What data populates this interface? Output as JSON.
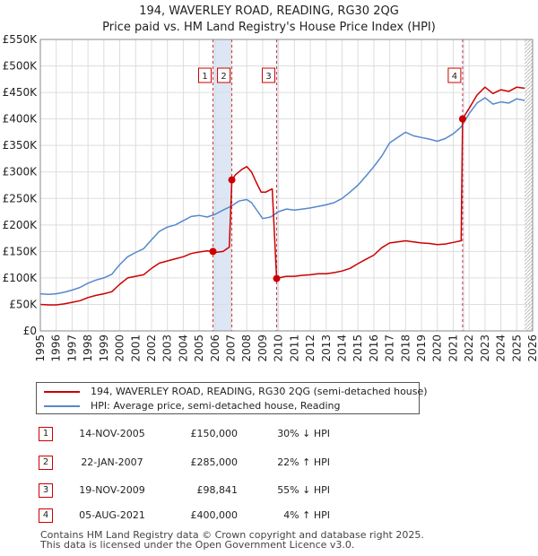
{
  "chart_data": {
    "type": "line",
    "title": "194, WAVERLEY ROAD, READING, RG30 2QG",
    "subtitle": "Price paid vs. HM Land Registry's House Price Index (HPI)",
    "xlim": [
      1995,
      2026
    ],
    "ylim": [
      0,
      550000
    ],
    "x_ticks": [
      1995,
      1996,
      1997,
      1998,
      1999,
      2000,
      2001,
      2002,
      2003,
      2004,
      2005,
      2006,
      2007,
      2008,
      2009,
      2010,
      2011,
      2012,
      2013,
      2014,
      2015,
      2016,
      2017,
      2018,
      2019,
      2020,
      2021,
      2022,
      2023,
      2024,
      2025,
      2026
    ],
    "y_ticks": [
      {
        "value": 0,
        "label": "£0"
      },
      {
        "value": 50000,
        "label": "£50K"
      },
      {
        "value": 100000,
        "label": "£100K"
      },
      {
        "value": 150000,
        "label": "£150K"
      },
      {
        "value": 200000,
        "label": "£200K"
      },
      {
        "value": 250000,
        "label": "£250K"
      },
      {
        "value": 300000,
        "label": "£300K"
      },
      {
        "value": 350000,
        "label": "£350K"
      },
      {
        "value": 400000,
        "label": "£400K"
      },
      {
        "value": 450000,
        "label": "£450K"
      },
      {
        "value": 500000,
        "label": "£500K"
      },
      {
        "value": 550000,
        "label": "£550K"
      }
    ],
    "grid": true,
    "series": [
      {
        "name": "194, WAVERLEY ROAD, READING, RG30 2QG (semi-detached house)",
        "color": "#cc0000",
        "points": [
          [
            1995.0,
            50000
          ],
          [
            1995.5,
            49000
          ],
          [
            1996.0,
            49000
          ],
          [
            1996.5,
            51000
          ],
          [
            1997.0,
            54000
          ],
          [
            1997.5,
            57000
          ],
          [
            1998.0,
            63000
          ],
          [
            1998.5,
            67000
          ],
          [
            1999.0,
            70000
          ],
          [
            1999.5,
            74000
          ],
          [
            2000.0,
            88000
          ],
          [
            2000.5,
            100000
          ],
          [
            2001.0,
            103000
          ],
          [
            2001.5,
            106000
          ],
          [
            2002.0,
            118000
          ],
          [
            2002.5,
            128000
          ],
          [
            2003.0,
            132000
          ],
          [
            2003.5,
            136000
          ],
          [
            2004.0,
            140000
          ],
          [
            2004.5,
            146000
          ],
          [
            2005.0,
            149000
          ],
          [
            2005.5,
            151000
          ],
          [
            2005.87,
            150000
          ],
          [
            2006.0,
            148000
          ],
          [
            2006.5,
            150000
          ],
          [
            2006.9,
            158000
          ],
          [
            2007.06,
            285000
          ],
          [
            2007.3,
            295000
          ],
          [
            2007.7,
            305000
          ],
          [
            2008.0,
            310000
          ],
          [
            2008.3,
            300000
          ],
          [
            2008.6,
            280000
          ],
          [
            2008.9,
            262000
          ],
          [
            2009.2,
            262000
          ],
          [
            2009.6,
            268000
          ],
          [
            2009.88,
            98841
          ],
          [
            2010.0,
            100000
          ],
          [
            2010.5,
            103000
          ],
          [
            2011.0,
            103000
          ],
          [
            2011.5,
            105000
          ],
          [
            2012.0,
            106000
          ],
          [
            2012.5,
            108000
          ],
          [
            2013.0,
            108000
          ],
          [
            2013.5,
            110000
          ],
          [
            2014.0,
            113000
          ],
          [
            2014.5,
            118000
          ],
          [
            2015.0,
            127000
          ],
          [
            2015.5,
            135000
          ],
          [
            2016.0,
            143000
          ],
          [
            2016.5,
            157000
          ],
          [
            2017.0,
            166000
          ],
          [
            2017.5,
            168000
          ],
          [
            2018.0,
            170000
          ],
          [
            2018.5,
            168000
          ],
          [
            2019.0,
            166000
          ],
          [
            2019.5,
            165000
          ],
          [
            2020.0,
            163000
          ],
          [
            2020.5,
            164000
          ],
          [
            2021.0,
            167000
          ],
          [
            2021.5,
            170000
          ],
          [
            2021.59,
            400000
          ],
          [
            2022.0,
            420000
          ],
          [
            2022.5,
            445000
          ],
          [
            2023.0,
            460000
          ],
          [
            2023.5,
            448000
          ],
          [
            2024.0,
            455000
          ],
          [
            2024.5,
            452000
          ],
          [
            2025.0,
            460000
          ],
          [
            2025.5,
            458000
          ]
        ]
      },
      {
        "name": "HPI: Average price, semi-detached house, Reading",
        "color": "#5588cc",
        "points": [
          [
            1995.0,
            70000
          ],
          [
            1995.5,
            69000
          ],
          [
            1996.0,
            70000
          ],
          [
            1996.5,
            73000
          ],
          [
            1997.0,
            77000
          ],
          [
            1997.5,
            82000
          ],
          [
            1998.0,
            90000
          ],
          [
            1998.5,
            96000
          ],
          [
            1999.0,
            100000
          ],
          [
            1999.5,
            107000
          ],
          [
            2000.0,
            125000
          ],
          [
            2000.5,
            140000
          ],
          [
            2001.0,
            148000
          ],
          [
            2001.5,
            155000
          ],
          [
            2002.0,
            172000
          ],
          [
            2002.5,
            188000
          ],
          [
            2003.0,
            196000
          ],
          [
            2003.5,
            200000
          ],
          [
            2004.0,
            208000
          ],
          [
            2004.5,
            216000
          ],
          [
            2005.0,
            218000
          ],
          [
            2005.5,
            215000
          ],
          [
            2006.0,
            220000
          ],
          [
            2006.5,
            228000
          ],
          [
            2007.0,
            235000
          ],
          [
            2007.5,
            245000
          ],
          [
            2008.0,
            248000
          ],
          [
            2008.3,
            242000
          ],
          [
            2008.7,
            225000
          ],
          [
            2009.0,
            212000
          ],
          [
            2009.5,
            215000
          ],
          [
            2010.0,
            225000
          ],
          [
            2010.5,
            230000
          ],
          [
            2011.0,
            228000
          ],
          [
            2011.5,
            230000
          ],
          [
            2012.0,
            232000
          ],
          [
            2012.5,
            235000
          ],
          [
            2013.0,
            238000
          ],
          [
            2013.5,
            242000
          ],
          [
            2014.0,
            250000
          ],
          [
            2014.5,
            262000
          ],
          [
            2015.0,
            275000
          ],
          [
            2015.5,
            292000
          ],
          [
            2016.0,
            310000
          ],
          [
            2016.5,
            330000
          ],
          [
            2017.0,
            355000
          ],
          [
            2017.5,
            365000
          ],
          [
            2018.0,
            375000
          ],
          [
            2018.5,
            368000
          ],
          [
            2019.0,
            365000
          ],
          [
            2019.5,
            362000
          ],
          [
            2020.0,
            358000
          ],
          [
            2020.5,
            363000
          ],
          [
            2021.0,
            372000
          ],
          [
            2021.5,
            385000
          ],
          [
            2022.0,
            410000
          ],
          [
            2022.5,
            430000
          ],
          [
            2023.0,
            440000
          ],
          [
            2023.5,
            428000
          ],
          [
            2024.0,
            432000
          ],
          [
            2024.5,
            430000
          ],
          [
            2025.0,
            438000
          ],
          [
            2025.5,
            435000
          ]
        ]
      }
    ],
    "transactions": [
      {
        "number": "1",
        "date": "14-NOV-2005",
        "x": 2005.87,
        "price": 150000,
        "price_label": "£150,000",
        "hpi": "30% ↓ HPI"
      },
      {
        "number": "2",
        "date": "22-JAN-2007",
        "x": 2007.06,
        "price": 285000,
        "price_label": "£285,000",
        "hpi": "22% ↑ HPI"
      },
      {
        "number": "3",
        "date": "19-NOV-2009",
        "x": 2009.88,
        "price": 98841,
        "price_label": "£98,841",
        "hpi": "55% ↓ HPI"
      },
      {
        "number": "4",
        "date": "05-AUG-2021",
        "x": 2021.59,
        "price": 400000,
        "price_label": "£400,000",
        "hpi": "4% ↑ HPI"
      }
    ],
    "future_shade_from": 2025.5
  },
  "legend": {
    "property_label": "194, WAVERLEY ROAD, READING, RG30 2QG (semi-detached house)",
    "hpi_label": "HPI: Average price, semi-detached house, Reading"
  },
  "footer": {
    "line1": "Contains HM Land Registry data © Crown copyright and database right 2025.",
    "line2": "This data is licensed under the Open Government Licence v3.0."
  },
  "colors": {
    "property": "#cc0000",
    "hpi": "#5588cc",
    "marker_box": "#cc0000",
    "highlight": "#dce6f5"
  }
}
